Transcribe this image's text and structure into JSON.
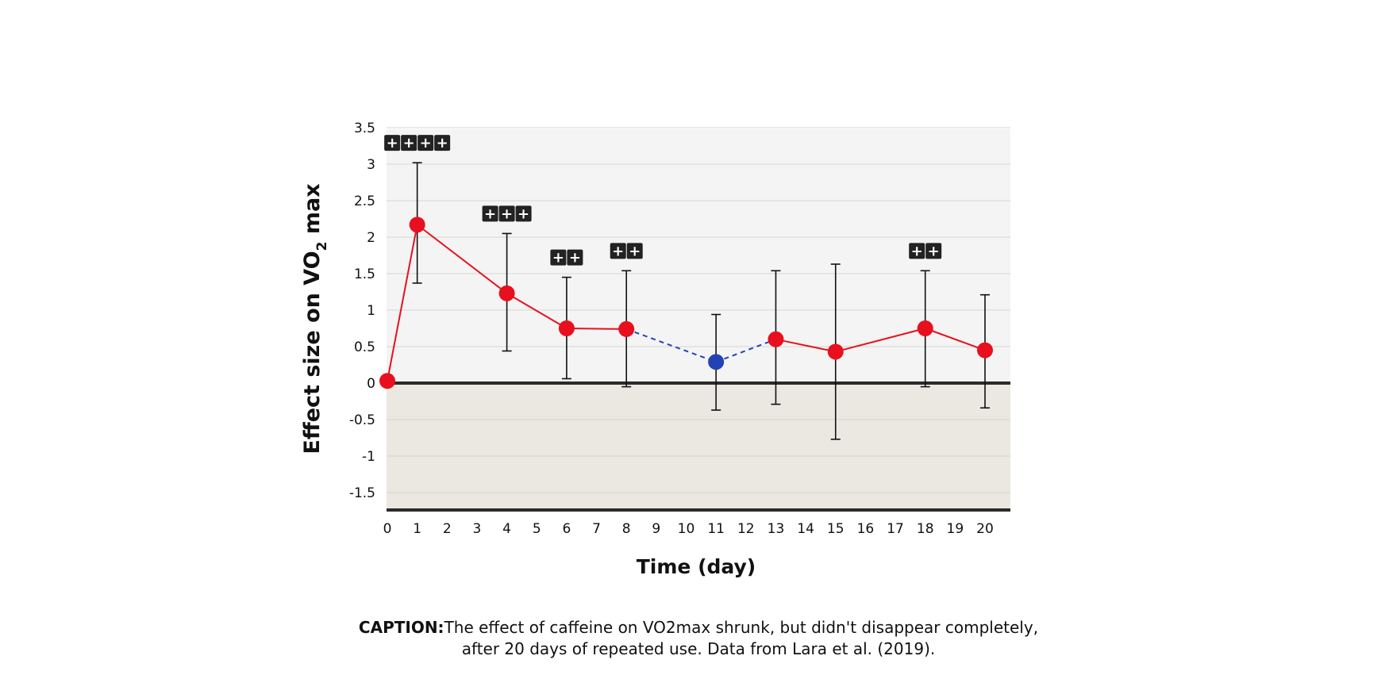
{
  "chart_data": {
    "type": "line",
    "title": "",
    "xlabel": "Time (day)",
    "ylabel": "Effect size on VO",
    "ylabel_sub": "2",
    "ylabel_suffix": " max",
    "xlim": [
      0,
      20
    ],
    "ylim": [
      -1.75,
      3.5
    ],
    "x_ticks": [
      0,
      1,
      2,
      3,
      4,
      5,
      6,
      7,
      8,
      9,
      10,
      11,
      12,
      13,
      14,
      15,
      16,
      17,
      18,
      19,
      20
    ],
    "y_ticks": [
      3.5,
      3,
      2.5,
      2,
      1.5,
      1,
      0.5,
      0,
      -0.5,
      -1,
      -1.5
    ],
    "y_tick_labels": [
      "3.5",
      "3",
      "2.5",
      "2",
      "1.5",
      "1",
      "0.5",
      "0",
      "-0.5",
      "-1",
      "-1.5"
    ],
    "grid": true,
    "colors": {
      "series": "#e8101e",
      "highlight": "#2343b5",
      "positive_bg": "#f4f4f4",
      "negative_bg": "#ebe7e1",
      "axis": "#2a2a2a",
      "badge": "#222222"
    },
    "series": [
      {
        "points": [
          {
            "x": 0,
            "y": 0.03,
            "low": null,
            "high": null,
            "sig": 0
          },
          {
            "x": 1,
            "y": 2.17,
            "low": 1.37,
            "high": 3.02,
            "sig": 4
          },
          {
            "x": 4,
            "y": 1.23,
            "low": 0.44,
            "high": 2.05,
            "sig": 3
          },
          {
            "x": 6,
            "y": 0.75,
            "low": 0.06,
            "high": 1.45,
            "sig": 2
          },
          {
            "x": 8,
            "y": 0.74,
            "low": -0.05,
            "high": 1.54,
            "sig": 2
          },
          {
            "x": 11,
            "y": 0.29,
            "low": -0.37,
            "high": 0.94,
            "sig": 0,
            "highlight": true
          },
          {
            "x": 13,
            "y": 0.6,
            "low": -0.29,
            "high": 1.54,
            "sig": 0
          },
          {
            "x": 15,
            "y": 0.43,
            "low": -0.77,
            "high": 1.63,
            "sig": 0
          },
          {
            "x": 18,
            "y": 0.75,
            "low": -0.05,
            "high": 1.54,
            "sig": 2
          },
          {
            "x": 20,
            "y": 0.45,
            "low": -0.34,
            "high": 1.21,
            "sig": 0
          }
        ]
      }
    ],
    "annotations": {
      "badge_symbol": "+"
    }
  },
  "caption": {
    "label": "CAPTION:",
    "line1": "The effect of caffeine on VO2max shrunk, but didn't disappear completely,",
    "line2": "after 20 days of repeated use. Data from Lara et al. (2019)."
  }
}
